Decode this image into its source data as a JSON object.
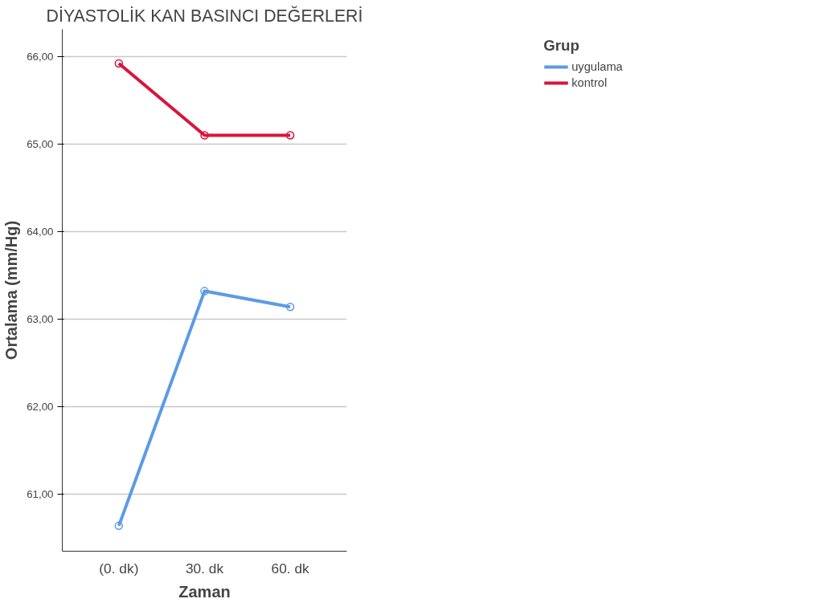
{
  "chart_data": {
    "type": "line",
    "title": "DİYASTOLİK KAN BASINCI DEĞERLERİ",
    "xlabel": "Zaman",
    "ylabel": "Ortalama (mm/Hg)",
    "legend_title": "Grup",
    "categories": [
      "(0. dk)",
      "30. dk",
      "60. dk"
    ],
    "series": [
      {
        "name": "uygulama",
        "color": "#5b9be6",
        "values": [
          60.64,
          63.32,
          63.14
        ]
      },
      {
        "name": "kontrol",
        "color": "#d9143c",
        "values": [
          65.92,
          65.1,
          65.1
        ]
      }
    ],
    "ylim": [
      60.35,
      66.31
    ],
    "yticks": [
      {
        "value": 61,
        "label": "61,00"
      },
      {
        "value": 62,
        "label": "62,00"
      },
      {
        "value": 63,
        "label": "63,00"
      },
      {
        "value": 64,
        "label": "64,00"
      },
      {
        "value": 65,
        "label": "65,00"
      },
      {
        "value": 66,
        "label": "66,00"
      }
    ],
    "grid": "y",
    "legend": "top right",
    "marker": "circle",
    "line_style": "solid"
  }
}
